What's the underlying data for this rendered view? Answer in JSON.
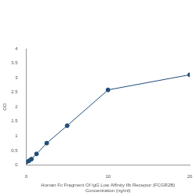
{
  "chart_data": {
    "type": "line",
    "x_label": [
      "Human Fc Fragment Of IgG Low Affinity IIb Receptor (FCGR2B)",
      "Concentration (ng/ml)"
    ],
    "y_label": "OD",
    "x": [
      0,
      0.3125,
      0.625,
      1.25,
      2.5,
      5,
      10,
      20
    ],
    "values": [
      0.1,
      0.14,
      0.2,
      0.38,
      0.75,
      1.35,
      2.58,
      3.1
    ],
    "color": "#1f4e79",
    "marker": "circle",
    "xlim": [
      0,
      20
    ],
    "xticks": [
      0,
      10,
      20
    ],
    "ylim": [
      0,
      4
    ],
    "yticks": [
      0,
      0.5,
      1,
      1.5,
      2,
      2.5,
      3,
      3.5,
      4
    ],
    "grid": false
  }
}
